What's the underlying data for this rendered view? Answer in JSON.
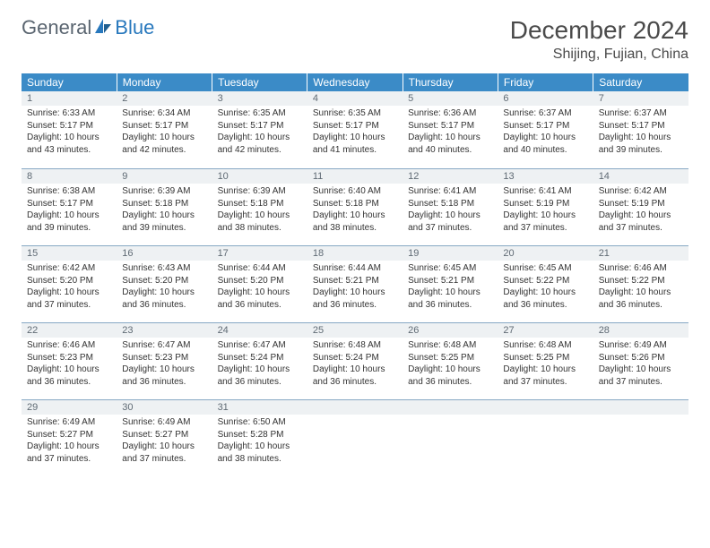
{
  "logo": {
    "part1": "General",
    "part2": "Blue"
  },
  "title": "December 2024",
  "location": "Shijing, Fujian, China",
  "colors": {
    "header_bg": "#3b8bc7",
    "header_text": "#ffffff",
    "daynum_bg": "#eef1f3",
    "daynum_text": "#5f6a74",
    "border": "#87a8c4",
    "logo_gray": "#5a6570",
    "logo_blue": "#2878bd"
  },
  "weekdays": [
    "Sunday",
    "Monday",
    "Tuesday",
    "Wednesday",
    "Thursday",
    "Friday",
    "Saturday"
  ],
  "days": [
    {
      "n": "1",
      "sr": "6:33 AM",
      "ss": "5:17 PM",
      "dl": "10 hours and 43 minutes."
    },
    {
      "n": "2",
      "sr": "6:34 AM",
      "ss": "5:17 PM",
      "dl": "10 hours and 42 minutes."
    },
    {
      "n": "3",
      "sr": "6:35 AM",
      "ss": "5:17 PM",
      "dl": "10 hours and 42 minutes."
    },
    {
      "n": "4",
      "sr": "6:35 AM",
      "ss": "5:17 PM",
      "dl": "10 hours and 41 minutes."
    },
    {
      "n": "5",
      "sr": "6:36 AM",
      "ss": "5:17 PM",
      "dl": "10 hours and 40 minutes."
    },
    {
      "n": "6",
      "sr": "6:37 AM",
      "ss": "5:17 PM",
      "dl": "10 hours and 40 minutes."
    },
    {
      "n": "7",
      "sr": "6:37 AM",
      "ss": "5:17 PM",
      "dl": "10 hours and 39 minutes."
    },
    {
      "n": "8",
      "sr": "6:38 AM",
      "ss": "5:17 PM",
      "dl": "10 hours and 39 minutes."
    },
    {
      "n": "9",
      "sr": "6:39 AM",
      "ss": "5:18 PM",
      "dl": "10 hours and 39 minutes."
    },
    {
      "n": "10",
      "sr": "6:39 AM",
      "ss": "5:18 PM",
      "dl": "10 hours and 38 minutes."
    },
    {
      "n": "11",
      "sr": "6:40 AM",
      "ss": "5:18 PM",
      "dl": "10 hours and 38 minutes."
    },
    {
      "n": "12",
      "sr": "6:41 AM",
      "ss": "5:18 PM",
      "dl": "10 hours and 37 minutes."
    },
    {
      "n": "13",
      "sr": "6:41 AM",
      "ss": "5:19 PM",
      "dl": "10 hours and 37 minutes."
    },
    {
      "n": "14",
      "sr": "6:42 AM",
      "ss": "5:19 PM",
      "dl": "10 hours and 37 minutes."
    },
    {
      "n": "15",
      "sr": "6:42 AM",
      "ss": "5:20 PM",
      "dl": "10 hours and 37 minutes."
    },
    {
      "n": "16",
      "sr": "6:43 AM",
      "ss": "5:20 PM",
      "dl": "10 hours and 36 minutes."
    },
    {
      "n": "17",
      "sr": "6:44 AM",
      "ss": "5:20 PM",
      "dl": "10 hours and 36 minutes."
    },
    {
      "n": "18",
      "sr": "6:44 AM",
      "ss": "5:21 PM",
      "dl": "10 hours and 36 minutes."
    },
    {
      "n": "19",
      "sr": "6:45 AM",
      "ss": "5:21 PM",
      "dl": "10 hours and 36 minutes."
    },
    {
      "n": "20",
      "sr": "6:45 AM",
      "ss": "5:22 PM",
      "dl": "10 hours and 36 minutes."
    },
    {
      "n": "21",
      "sr": "6:46 AM",
      "ss": "5:22 PM",
      "dl": "10 hours and 36 minutes."
    },
    {
      "n": "22",
      "sr": "6:46 AM",
      "ss": "5:23 PM",
      "dl": "10 hours and 36 minutes."
    },
    {
      "n": "23",
      "sr": "6:47 AM",
      "ss": "5:23 PM",
      "dl": "10 hours and 36 minutes."
    },
    {
      "n": "24",
      "sr": "6:47 AM",
      "ss": "5:24 PM",
      "dl": "10 hours and 36 minutes."
    },
    {
      "n": "25",
      "sr": "6:48 AM",
      "ss": "5:24 PM",
      "dl": "10 hours and 36 minutes."
    },
    {
      "n": "26",
      "sr": "6:48 AM",
      "ss": "5:25 PM",
      "dl": "10 hours and 36 minutes."
    },
    {
      "n": "27",
      "sr": "6:48 AM",
      "ss": "5:25 PM",
      "dl": "10 hours and 37 minutes."
    },
    {
      "n": "28",
      "sr": "6:49 AM",
      "ss": "5:26 PM",
      "dl": "10 hours and 37 minutes."
    },
    {
      "n": "29",
      "sr": "6:49 AM",
      "ss": "5:27 PM",
      "dl": "10 hours and 37 minutes."
    },
    {
      "n": "30",
      "sr": "6:49 AM",
      "ss": "5:27 PM",
      "dl": "10 hours and 37 minutes."
    },
    {
      "n": "31",
      "sr": "6:50 AM",
      "ss": "5:28 PM",
      "dl": "10 hours and 38 minutes."
    }
  ],
  "labels": {
    "sunrise": "Sunrise:",
    "sunset": "Sunset:",
    "daylight": "Daylight:"
  },
  "layout": {
    "start_offset": 0,
    "total_cells": 35
  }
}
